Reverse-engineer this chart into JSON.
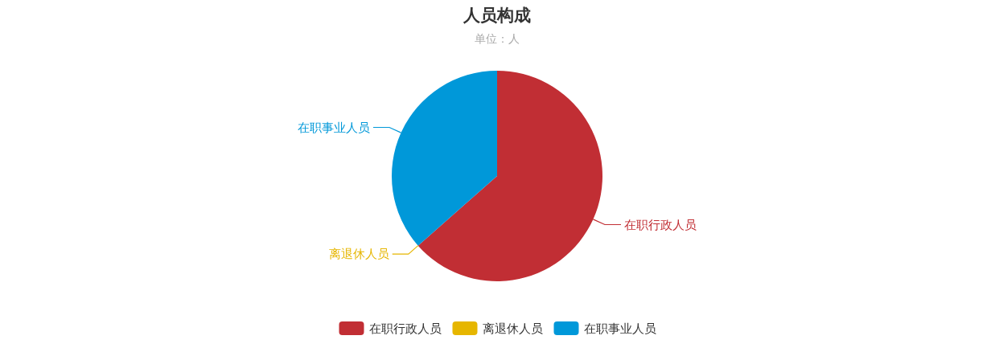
{
  "chart_data": {
    "type": "pie",
    "title": "人员构成",
    "subtitle": "单位：人",
    "categories": [
      "在职行政人员",
      "离退休人员",
      "在职事业人员"
    ],
    "values": [
      63.5,
      0,
      36.5
    ],
    "colors": [
      "#c12e34",
      "#e6b600",
      "#0098d9"
    ],
    "legend": "bottom"
  }
}
